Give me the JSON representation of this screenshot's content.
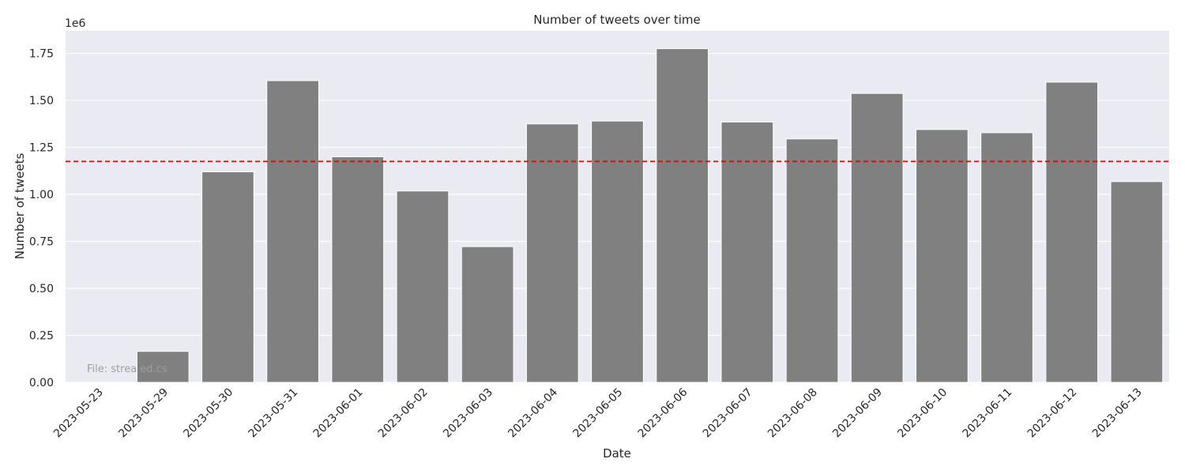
{
  "chart_data": {
    "type": "bar",
    "title": "Number of tweets over time",
    "xlabel": "Date",
    "ylabel": "Number of tweets",
    "y_scale_label": "1e6",
    "y_scale": 1000000,
    "ylim": [
      0,
      1.87
    ],
    "y_ticks": [
      "0.00",
      "0.25",
      "0.50",
      "0.75",
      "1.00",
      "1.25",
      "1.50",
      "1.75"
    ],
    "y_tick_values": [
      0,
      0.25,
      0.5,
      0.75,
      1.0,
      1.25,
      1.5,
      1.75
    ],
    "categories": [
      "2023-05-23",
      "2023-05-29",
      "2023-05-30",
      "2023-05-31",
      "2023-06-01",
      "2023-06-02",
      "2023-06-03",
      "2023-06-04",
      "2023-06-05",
      "2023-06-06",
      "2023-06-07",
      "2023-06-08",
      "2023-06-09",
      "2023-06-10",
      "2023-06-11",
      "2023-06-12",
      "2023-06-13"
    ],
    "values": [
      0.0,
      0.165,
      1.12,
      1.605,
      1.2,
      1.018,
      0.722,
      1.375,
      1.39,
      1.775,
      1.385,
      1.295,
      1.537,
      1.345,
      1.328,
      1.597,
      1.068
    ],
    "mean_line": 1.175,
    "mean_line_color": "#e00000",
    "bar_color": "#808080",
    "background_color": "#eaeaf2",
    "grid": true,
    "watermark": "File: strea     ed.cs"
  }
}
